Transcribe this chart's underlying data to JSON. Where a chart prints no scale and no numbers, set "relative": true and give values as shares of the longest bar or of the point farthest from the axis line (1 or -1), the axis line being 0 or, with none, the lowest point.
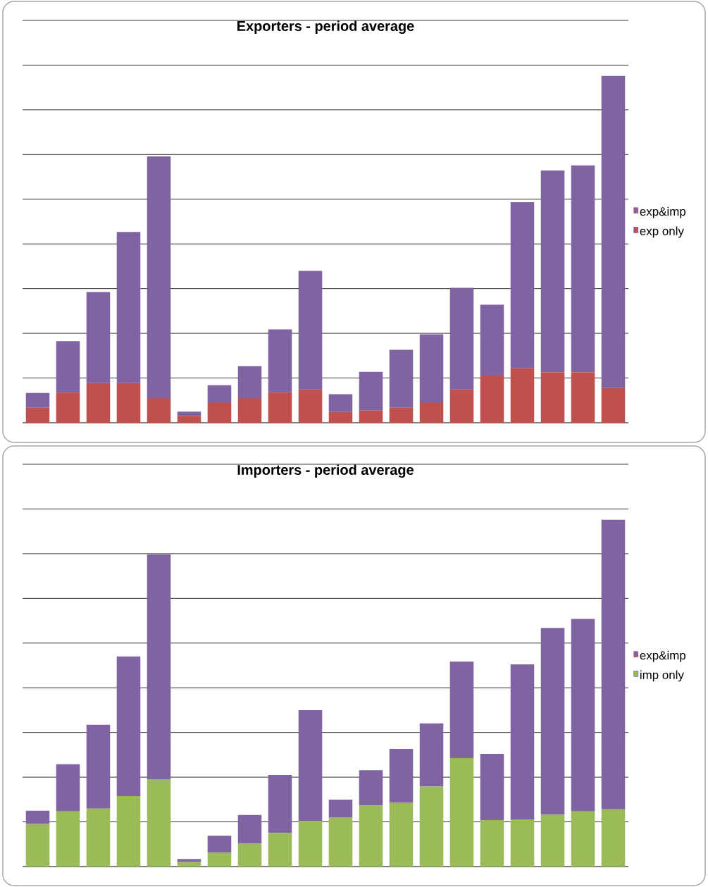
{
  "chart_data": [
    {
      "type": "bar",
      "title": "Exporters - period average",
      "stacked": true,
      "relative": true,
      "grid": "y",
      "legend": "right",
      "categories": [
        null,
        null,
        null,
        null,
        null,
        null,
        null,
        null,
        null,
        null,
        null,
        null,
        null,
        null,
        null,
        null,
        null,
        null,
        null,
        null
      ],
      "series": [
        {
          "name": "exp only",
          "color": "#c0504d",
          "values": [
            0.043,
            0.088,
            0.114,
            0.114,
            0.071,
            0.02,
            0.059,
            0.071,
            0.088,
            0.096,
            0.031,
            0.035,
            0.043,
            0.059,
            0.096,
            0.136,
            0.157,
            0.145,
            0.145,
            0.1
          ]
        },
        {
          "name": "exp&imp",
          "color": "#8064a2",
          "values": [
            0.043,
            0.147,
            0.263,
            0.436,
            0.697,
            0.012,
            0.049,
            0.092,
            0.181,
            0.342,
            0.051,
            0.112,
            0.167,
            0.196,
            0.293,
            0.204,
            0.479,
            0.582,
            0.597,
            0.9
          ]
        }
      ]
    },
    {
      "type": "bar",
      "title": "Importers - period average",
      "stacked": true,
      "relative": true,
      "grid": "y",
      "legend": "right",
      "categories": [
        null,
        null,
        null,
        null,
        null,
        null,
        null,
        null,
        null,
        null,
        null,
        null,
        null,
        null,
        null,
        null,
        null,
        null,
        null,
        null
      ],
      "series": [
        {
          "name": "imp only",
          "color": "#9bbb59",
          "values": [
            0.123,
            0.159,
            0.167,
            0.203,
            0.252,
            0.013,
            0.04,
            0.066,
            0.097,
            0.131,
            0.142,
            0.176,
            0.184,
            0.231,
            0.313,
            0.134,
            0.136,
            0.15,
            0.159,
            0.165
          ]
        },
        {
          "name": "exp&imp",
          "color": "#8064a2",
          "values": [
            0.038,
            0.136,
            0.242,
            0.403,
            0.648,
            0.009,
            0.049,
            0.083,
            0.167,
            0.32,
            0.051,
            0.102,
            0.155,
            0.182,
            0.278,
            0.191,
            0.447,
            0.538,
            0.555,
            0.835
          ]
        }
      ]
    }
  ]
}
